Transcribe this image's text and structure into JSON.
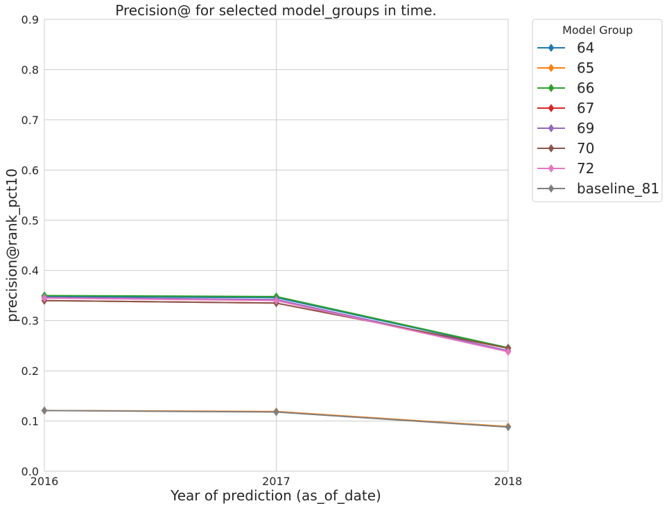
{
  "chart_data": {
    "type": "line",
    "title": "Precision@ for selected model_groups in time.",
    "xlabel": "Year of prediction (as_of_date)",
    "ylabel": "precision@rank_pct10",
    "x": [
      "2016",
      "2017",
      "2018"
    ],
    "xlim": [
      2016,
      2018
    ],
    "ylim": [
      0,
      0.9
    ],
    "yticks": [
      "0.0",
      "0.1",
      "0.2",
      "0.3",
      "0.4",
      "0.5",
      "0.6",
      "0.7",
      "0.8",
      "0.9"
    ],
    "grid": true,
    "legend": {
      "title": "Model Group",
      "placement": "outside-right"
    },
    "marker": "diamond",
    "series": [
      {
        "name": "64",
        "color": "#1f77b4",
        "values": [
          0.348,
          0.346,
          0.245
        ]
      },
      {
        "name": "65",
        "color": "#ff7f0e",
        "values": [
          0.121,
          0.119,
          0.089
        ]
      },
      {
        "name": "66",
        "color": "#2ca02c",
        "values": [
          0.35,
          0.348,
          0.246
        ]
      },
      {
        "name": "67",
        "color": "#d62728",
        "values": [
          0.34,
          0.335,
          0.245
        ]
      },
      {
        "name": "69",
        "color": "#9467bd",
        "values": [
          0.346,
          0.342,
          0.24
        ]
      },
      {
        "name": "70",
        "color": "#8c564b",
        "values": [
          0.34,
          0.335,
          0.245
        ]
      },
      {
        "name": "72",
        "color": "#e377c2",
        "values": [
          0.345,
          0.34,
          0.238
        ]
      },
      {
        "name": "baseline_81",
        "color": "#7f7f7f",
        "values": [
          0.121,
          0.118,
          0.088
        ]
      }
    ]
  }
}
